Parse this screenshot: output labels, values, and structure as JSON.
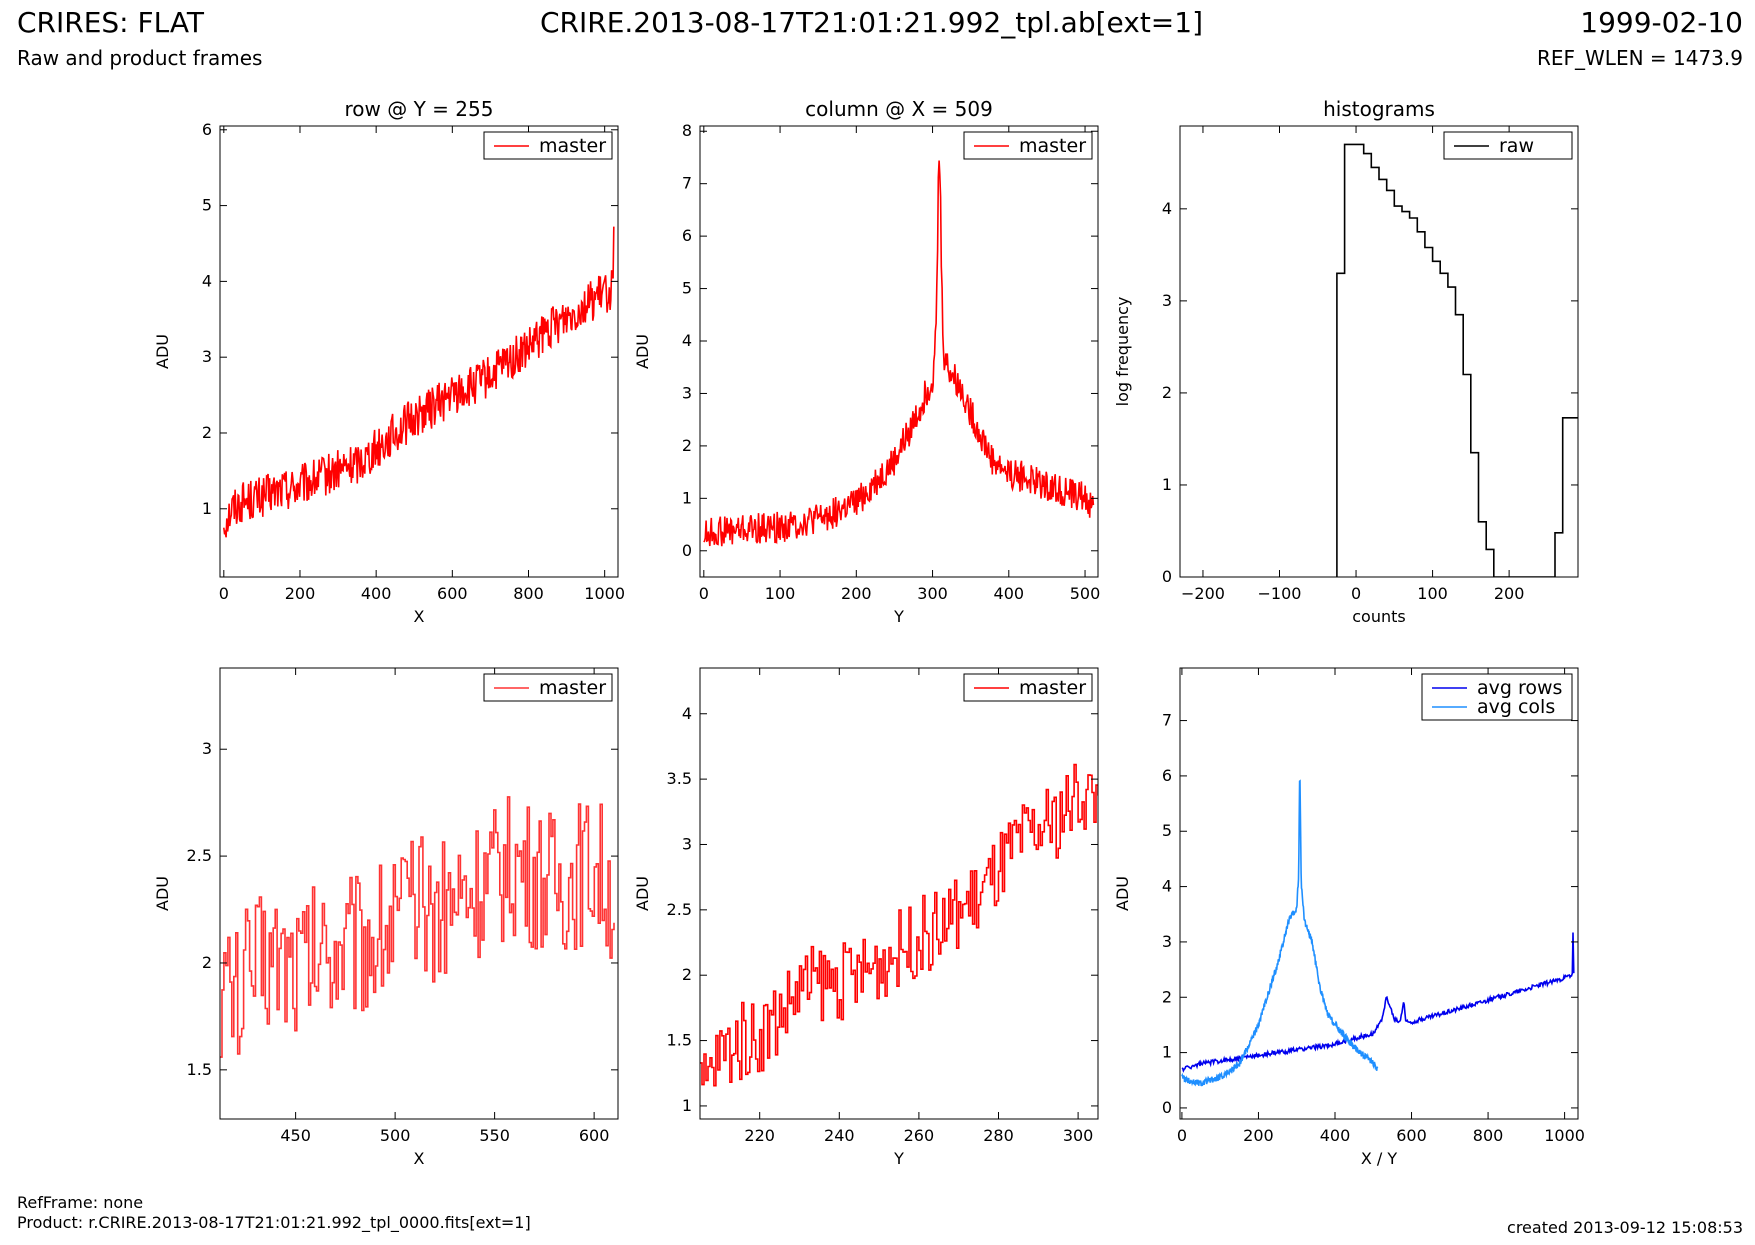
{
  "header": {
    "title_left": "CRIRES: FLAT",
    "title_center": "CRIRE.2013-08-17T21:01:21.992_tpl.ab[ext=1]",
    "title_right": "1999-02-10",
    "subtitle_left": "Raw and product frames",
    "subtitle_right": "REF_WLEN = 1473.9"
  },
  "footer": {
    "refframe": "RefFrame: none",
    "product": "Product: r.CRIRE.2013-08-17T21:01:21.992_tpl_0000.fits[ext=1]",
    "created": "created 2013-09-12 15:08:53"
  },
  "chart_data": [
    {
      "type": "line",
      "title": "row @ Y = 255",
      "xlabel": "X",
      "ylabel": "ADU",
      "xlim": [
        -10,
        1035
      ],
      "ylim": [
        0.1,
        6.05
      ],
      "xticks": [
        0,
        200,
        400,
        600,
        800,
        1000
      ],
      "yticks": [
        1,
        2,
        3,
        4,
        5,
        6
      ],
      "legend": "top-right",
      "series": [
        {
          "name": "master",
          "color": "#ff0000",
          "x": [
            0,
            20,
            50,
            100,
            150,
            200,
            250,
            300,
            350,
            400,
            450,
            500,
            550,
            600,
            650,
            700,
            750,
            800,
            850,
            900,
            950,
            1000,
            1020,
            1024
          ],
          "y": [
            0.8,
            1.0,
            1.1,
            1.15,
            1.25,
            1.3,
            1.4,
            1.5,
            1.6,
            1.8,
            2.0,
            2.2,
            2.35,
            2.5,
            2.6,
            2.75,
            2.95,
            3.1,
            3.35,
            3.55,
            3.7,
            3.85,
            3.9,
            4.7
          ],
          "noise": 0.28
        }
      ]
    },
    {
      "type": "line",
      "title": "column @ X = 509",
      "xlabel": "Y",
      "ylabel": "ADU",
      "xlim": [
        -5,
        517
      ],
      "ylim": [
        -0.5,
        8.1
      ],
      "xticks": [
        0,
        100,
        200,
        300,
        400,
        500
      ],
      "yticks": [
        0,
        1,
        2,
        3,
        4,
        5,
        6,
        7,
        8
      ],
      "legend": "top-right",
      "series": [
        {
          "name": "master",
          "color": "#ff0000",
          "x": [
            0,
            10,
            50,
            100,
            150,
            200,
            250,
            280,
            300,
            305,
            308,
            310,
            312,
            315,
            320,
            340,
            360,
            380,
            400,
            450,
            500,
            511
          ],
          "y": [
            0.3,
            0.35,
            0.4,
            0.45,
            0.6,
            0.9,
            1.7,
            2.6,
            3.3,
            4.2,
            7.4,
            7.2,
            5.0,
            3.7,
            3.5,
            3.0,
            2.3,
            1.7,
            1.5,
            1.25,
            1.0,
            0.8
          ],
          "noise": 0.3
        }
      ]
    },
    {
      "type": "line",
      "title": "histograms",
      "xlabel": "counts",
      "ylabel": "log frequency",
      "xlim": [
        -230,
        290
      ],
      "ylim": [
        0,
        4.9
      ],
      "xticks": [
        -200,
        -100,
        0,
        100,
        200
      ],
      "yticks": [
        0,
        1,
        2,
        3,
        4
      ],
      "legend": "top-right",
      "series": [
        {
          "name": "raw",
          "color": "#000000",
          "step": true,
          "x": [
            -25,
            -25,
            -15,
            -15,
            10,
            10,
            20,
            20,
            30,
            30,
            40,
            40,
            50,
            50,
            60,
            60,
            70,
            70,
            80,
            80,
            90,
            90,
            100,
            100,
            110,
            110,
            120,
            120,
            130,
            130,
            140,
            140,
            150,
            150,
            160,
            160,
            170,
            170,
            180,
            180,
            190,
            190,
            200,
            200,
            210,
            210,
            220,
            220,
            260,
            260,
            270,
            270,
            280,
            280,
            290
          ],
          "y": [
            0,
            3.3,
            3.3,
            4.7,
            4.7,
            4.6,
            4.6,
            4.45,
            4.45,
            4.32,
            4.32,
            4.2,
            4.2,
            4.03,
            4.03,
            3.97,
            3.97,
            3.9,
            3.9,
            3.75,
            3.75,
            3.58,
            3.58,
            3.43,
            3.43,
            3.3,
            3.3,
            3.15,
            3.15,
            2.85,
            2.85,
            2.2,
            2.2,
            1.35,
            1.35,
            0.6,
            0.6,
            0.3,
            0.3,
            0.0,
            0.0,
            0.0,
            0.0,
            0.0,
            0.0,
            0.0,
            0.0,
            0.0,
            0.0,
            0.48,
            0.48,
            1.73,
            1.73,
            1.73,
            1.73
          ]
        }
      ]
    },
    {
      "type": "line",
      "xlabel": "X",
      "ylabel": "ADU",
      "xlim": [
        412,
        612
      ],
      "ylim": [
        1.27,
        3.38
      ],
      "xticks": [
        450,
        500,
        550,
        600
      ],
      "yticks": [
        1.5,
        2.0,
        2.5,
        3.0
      ],
      "legend": "top-right",
      "series": [
        {
          "name": "master",
          "color": "#ff3333",
          "step": true,
          "x": [
            412,
            420,
            430,
            440,
            450,
            460,
            470,
            480,
            490,
            500,
            510,
            520,
            530,
            540,
            550,
            560,
            570,
            580,
            590,
            600,
            610
          ],
          "y": [
            1.9,
            1.85,
            2.0,
            2.05,
            2.0,
            2.05,
            2.1,
            2.1,
            2.15,
            2.2,
            2.25,
            2.25,
            2.3,
            2.35,
            2.4,
            2.45,
            2.4,
            2.35,
            2.4,
            2.45,
            2.3
          ],
          "noise": 0.35
        }
      ]
    },
    {
      "type": "line",
      "xlabel": "Y",
      "ylabel": "ADU",
      "xlim": [
        205,
        305
      ],
      "ylim": [
        0.9,
        4.35
      ],
      "xticks": [
        220,
        240,
        260,
        280,
        300
      ],
      "yticks": [
        1.0,
        1.5,
        2.0,
        2.5,
        3.0,
        3.5,
        4.0
      ],
      "legend": "top-right",
      "series": [
        {
          "name": "master",
          "color": "#ff0000",
          "step": true,
          "x": [
            205,
            210,
            215,
            220,
            225,
            230,
            235,
            240,
            245,
            250,
            255,
            260,
            265,
            270,
            275,
            280,
            285,
            290,
            295,
            300,
            305
          ],
          "y": [
            1.1,
            1.4,
            1.5,
            1.55,
            1.7,
            1.9,
            1.95,
            1.95,
            2.0,
            2.1,
            2.2,
            2.3,
            2.35,
            2.5,
            2.6,
            2.8,
            3.0,
            3.1,
            3.2,
            3.4,
            3.35
          ],
          "noise": 0.3
        }
      ]
    },
    {
      "type": "line",
      "xlabel": "X / Y",
      "ylabel": "ADU",
      "xlim": [
        -5,
        1035
      ],
      "ylim": [
        -0.2,
        7.95
      ],
      "xticks": [
        0,
        200,
        400,
        600,
        800,
        1000
      ],
      "yticks": [
        0,
        1,
        2,
        3,
        4,
        5,
        6,
        7
      ],
      "legend": "top-right",
      "series": [
        {
          "name": "avg rows",
          "color": "#0000ee",
          "x": [
            0,
            50,
            100,
            200,
            300,
            400,
            500,
            520,
            535,
            545,
            555,
            570,
            580,
            585,
            600,
            700,
            800,
            900,
            1000,
            1020,
            1022,
            1024
          ],
          "y": [
            0.7,
            0.8,
            0.85,
            0.95,
            1.05,
            1.15,
            1.35,
            1.55,
            2.0,
            1.8,
            1.6,
            1.55,
            1.95,
            1.55,
            1.55,
            1.75,
            1.95,
            2.15,
            2.35,
            2.4,
            3.2,
            2.4
          ],
          "noise": 0.04
        },
        {
          "name": "avg cols",
          "color": "#1f8fff",
          "x": [
            0,
            10,
            50,
            100,
            150,
            200,
            250,
            280,
            300,
            305,
            308,
            310,
            312,
            320,
            340,
            360,
            380,
            400,
            450,
            500,
            511
          ],
          "y": [
            0.6,
            0.5,
            0.45,
            0.55,
            0.8,
            1.5,
            2.6,
            3.4,
            3.6,
            4.2,
            6.2,
            5.0,
            4.0,
            3.4,
            3.0,
            2.2,
            1.7,
            1.5,
            1.1,
            0.8,
            0.7
          ],
          "noise": 0.06
        }
      ]
    }
  ]
}
